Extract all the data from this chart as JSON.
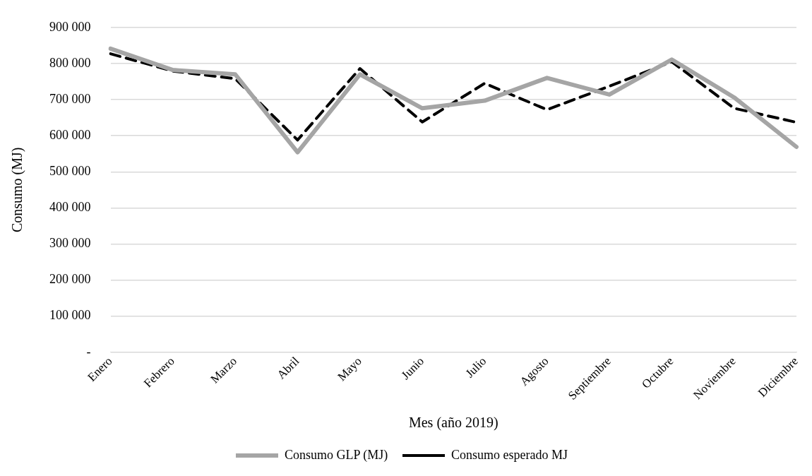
{
  "chart_data": {
    "type": "line",
    "xlabel": "Mes (año 2019)",
    "ylabel": "Consumo (MJ)",
    "categories": [
      "Enero",
      "Febrero",
      "Marzo",
      "Abril",
      "Mayo",
      "Junio",
      "Julio",
      "Agosto",
      "Septiembre",
      "Octubre",
      "Noviembre",
      "Diciembre"
    ],
    "series": [
      {
        "name": "Consumo GLP (MJ)",
        "color": "#a5a5a5",
        "line_style": "solid",
        "values": [
          841000,
          782000,
          770000,
          554000,
          770000,
          676000,
          697000,
          760000,
          714000,
          811000,
          706000,
          569000
        ]
      },
      {
        "name": "Consumo esperado MJ",
        "color": "#000000",
        "line_style": "dashed",
        "values": [
          827000,
          779000,
          758000,
          588000,
          786000,
          638000,
          745000,
          672000,
          737000,
          805000,
          676000,
          637000
        ]
      }
    ],
    "ylim": [
      0,
      900000
    ],
    "yticks": [
      {
        "value": 0,
        "label": "-"
      },
      {
        "value": 100000,
        "label": "100 000"
      },
      {
        "value": 200000,
        "label": "200 000"
      },
      {
        "value": 300000,
        "label": "300 000"
      },
      {
        "value": 400000,
        "label": "400 000"
      },
      {
        "value": 500000,
        "label": "500 000"
      },
      {
        "value": 600000,
        "label": "600 000"
      },
      {
        "value": 700000,
        "label": "700 000"
      },
      {
        "value": 800000,
        "label": "800 000"
      },
      {
        "value": 900000,
        "label": "900 000"
      }
    ],
    "grid": "y",
    "legend": "bottom",
    "marker": "none"
  }
}
